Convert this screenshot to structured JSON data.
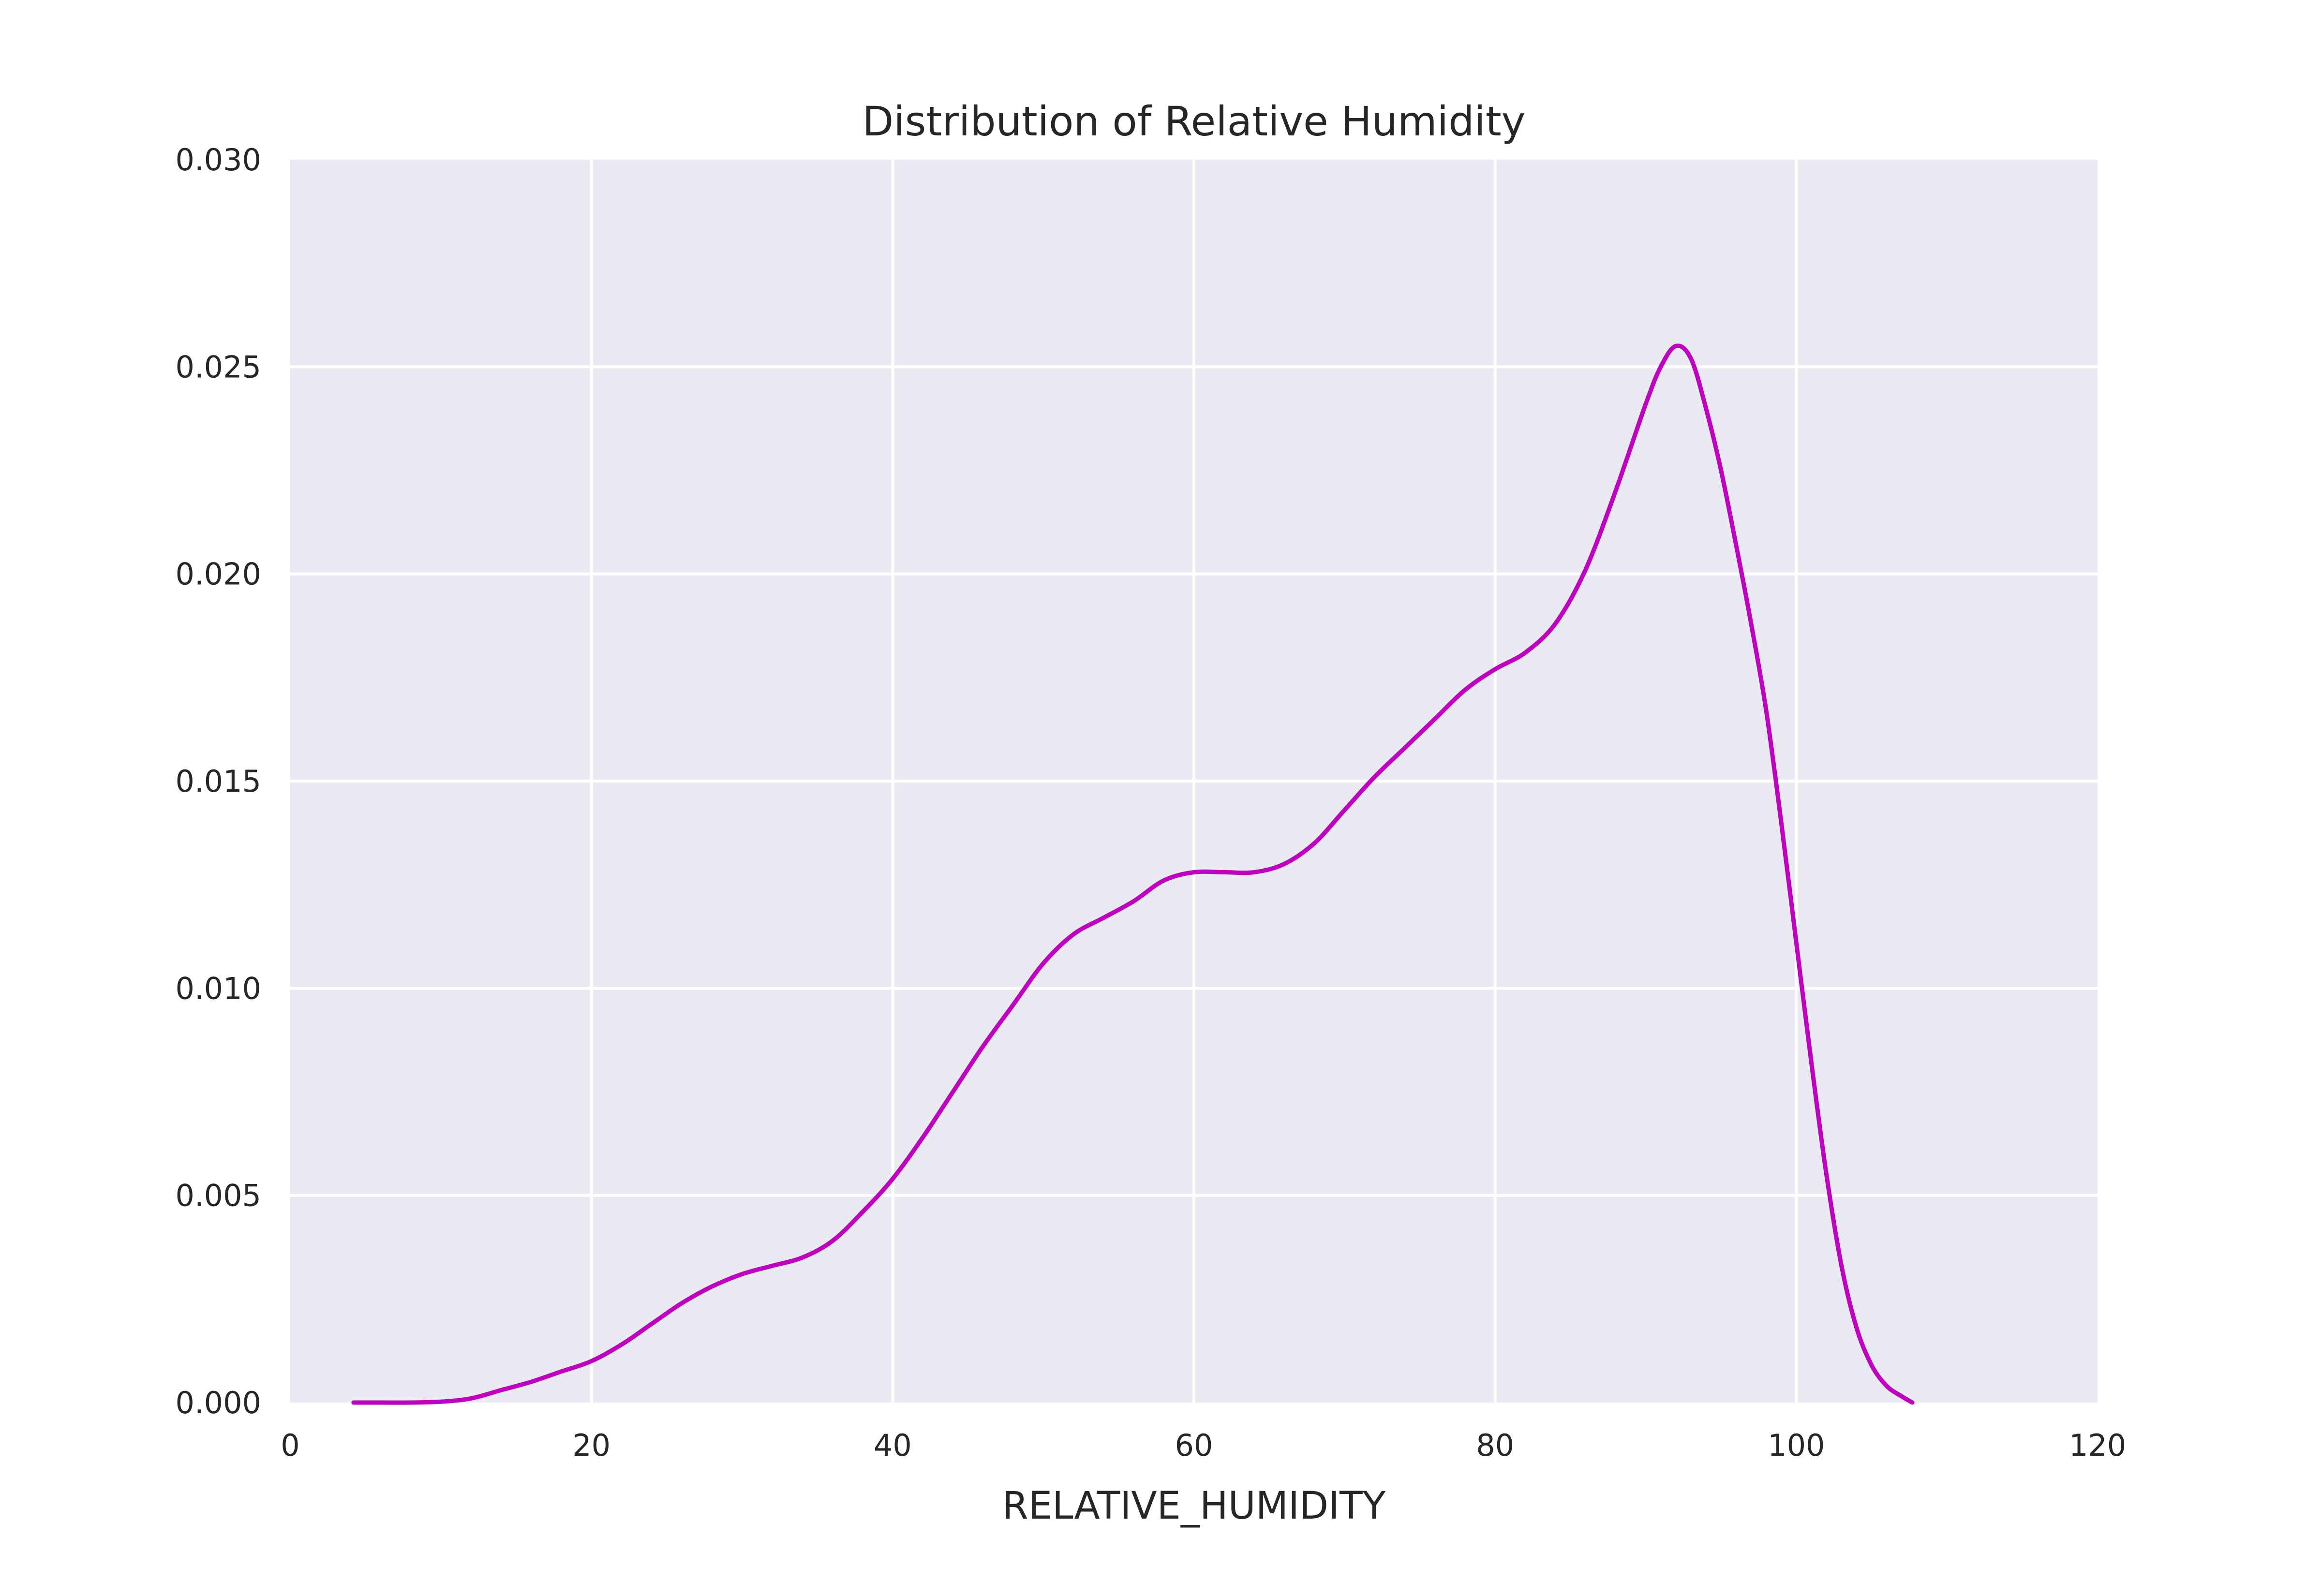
{
  "colors": {
    "plot_background": "#eaeaf2",
    "grid": "#ffffff",
    "line": "#bf00bf",
    "text": "#262626"
  },
  "chart_data": {
    "type": "line",
    "title": "Distribution of Relative Humidity",
    "xlabel": "RELATIVE_HUMIDITY",
    "ylabel": "",
    "xlim": [
      0,
      120
    ],
    "ylim": [
      0,
      0.03
    ],
    "x_ticks": [
      "0",
      "20",
      "40",
      "60",
      "80",
      "100",
      "120"
    ],
    "y_ticks": [
      "0.000",
      "0.005",
      "0.010",
      "0.015",
      "0.020",
      "0.025",
      "0.030"
    ],
    "grid": true,
    "legend": false,
    "series": [
      {
        "x": [
          4.2,
          6,
          8,
          10,
          12,
          14,
          16,
          18,
          20,
          22,
          24,
          26,
          28,
          30,
          32,
          34,
          36,
          38,
          40,
          42,
          44,
          46,
          48,
          50,
          52,
          54,
          56,
          58,
          60,
          62,
          64,
          66,
          68,
          70,
          72,
          74,
          76,
          78,
          80,
          82,
          84,
          86,
          88,
          90,
          91,
          92,
          93,
          94,
          95,
          96,
          97,
          98,
          99,
          100,
          101,
          102,
          103,
          104,
          105,
          106,
          107,
          107.7
        ],
        "y": [
          0.0,
          0.0,
          0.0,
          2e-05,
          0.0001,
          0.0003,
          0.0005,
          0.00075,
          0.001,
          0.0014,
          0.0019,
          0.0024,
          0.0028,
          0.0031,
          0.0033,
          0.0035,
          0.0039,
          0.0046,
          0.0054,
          0.0064,
          0.0075,
          0.0086,
          0.0096,
          0.0106,
          0.0113,
          0.0117,
          0.0121,
          0.0126,
          0.0128,
          0.0128,
          0.0128,
          0.013,
          0.0135,
          0.0143,
          0.0151,
          0.0158,
          0.0165,
          0.0172,
          0.0177,
          0.0181,
          0.0188,
          0.0201,
          0.022,
          0.0241,
          0.025,
          0.0255,
          0.0252,
          0.024,
          0.0225,
          0.0207,
          0.0188,
          0.0167,
          0.014,
          0.0111,
          0.0082,
          0.0055,
          0.0033,
          0.0018,
          0.0009,
          0.0004,
          0.00015,
          0.0
        ]
      }
    ]
  }
}
